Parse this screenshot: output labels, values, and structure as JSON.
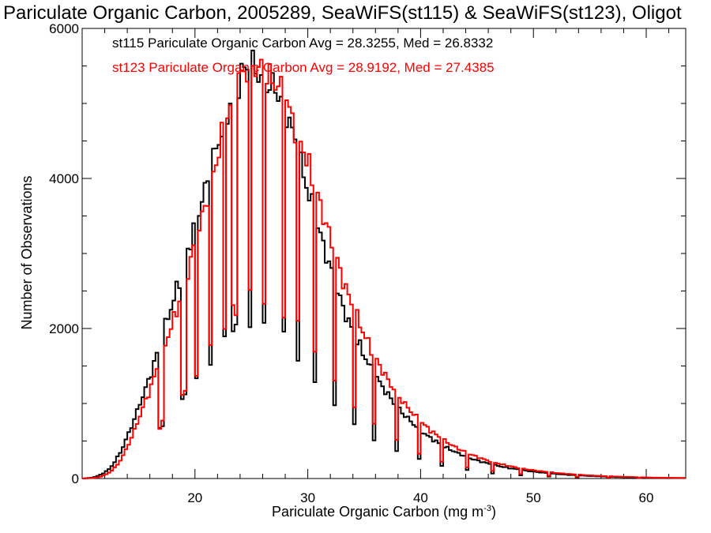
{
  "chart_data": {
    "type": "line",
    "title": "Pariculate Organic Carbon, 2005289, SeaWiFS(st115) & SeaWiFS(st123), Oligot",
    "xlabel": "Pariculate Organic Carbon (mg m",
    "xlabel_sup": "-3",
    "xlabel_close": ")",
    "ylabel": "Number of Observations",
    "xlim": [
      10,
      63.5
    ],
    "ylim": [
      0,
      6000
    ],
    "x_ticks": [
      20,
      30,
      40,
      50,
      60
    ],
    "x_tick_labels": [
      "20",
      "30",
      "40",
      "50",
      "60"
    ],
    "y_ticks": [
      0,
      2000,
      4000,
      6000
    ],
    "y_tick_labels": [
      "0",
      "2000",
      "4000",
      "6000"
    ],
    "grid": false,
    "legend_position": "top-left",
    "bin_width": 0.25,
    "series": [
      {
        "name": "st115",
        "label": "st115 Pariculate Organic Carbon Avg = 28.3255, Med = 26.8332",
        "color": "#000000",
        "x": [
          10.0,
          10.5,
          11.0,
          11.5,
          12.0,
          12.5,
          13.0,
          13.5,
          14.0,
          14.5,
          15.0,
          15.5,
          16.0,
          16.5,
          17.0,
          17.5,
          18.0,
          18.5,
          19.0,
          19.5,
          20.0,
          20.5,
          21.0,
          21.5,
          22.0,
          22.5,
          23.0,
          23.5,
          24.0,
          24.5,
          25.0,
          25.5,
          26.0,
          26.5,
          27.0,
          27.5,
          28.0,
          28.5,
          29.0,
          29.5,
          30.0,
          30.5,
          31.0,
          31.5,
          32.0,
          32.5,
          33.0,
          33.5,
          34.0,
          34.5,
          35.0,
          35.5,
          36.0,
          36.5,
          37.0,
          37.5,
          38.0,
          38.5,
          39.0,
          39.5,
          40.0,
          40.5,
          41.0,
          41.5,
          42.0,
          42.5,
          43.0,
          43.5,
          44.0,
          44.5,
          45.0,
          45.5,
          46.0,
          46.5,
          47.0,
          47.5,
          48.0,
          48.5,
          49.0,
          49.5,
          50.0,
          50.5,
          51.0,
          51.5,
          52.0,
          52.5,
          53.0,
          53.5,
          54.0,
          54.5,
          55.0,
          55.5,
          56.0,
          56.5,
          57.0,
          57.5,
          58.0,
          58.5,
          59.0,
          59.5,
          60.0,
          60.5,
          61.0,
          61.5,
          62.0,
          62.5,
          63.0
        ],
        "y": [
          0,
          5,
          15,
          40,
          80,
          140,
          250,
          380,
          560,
          740,
          950,
          1150,
          1350,
          1600,
          1840,
          2100,
          2330,
          2580,
          2840,
          3100,
          3400,
          3650,
          3900,
          4200,
          4450,
          4700,
          4950,
          5200,
          5380,
          5450,
          5500,
          5420,
          5330,
          5260,
          5220,
          5100,
          4950,
          4700,
          4400,
          4100,
          3850,
          3550,
          3300,
          3050,
          2800,
          2560,
          2330,
          2130,
          1960,
          1800,
          1640,
          1490,
          1370,
          1250,
          1140,
          1040,
          940,
          860,
          780,
          710,
          640,
          580,
          530,
          480,
          435,
          395,
          360,
          325,
          295,
          265,
          240,
          220,
          200,
          180,
          165,
          150,
          135,
          125,
          112,
          100,
          92,
          84,
          76,
          68,
          62,
          56,
          50,
          46,
          42,
          38,
          34,
          31,
          28,
          25,
          22,
          20,
          18,
          16,
          14,
          12,
          11,
          10,
          9,
          8,
          7,
          6,
          6
        ]
      },
      {
        "name": "st123",
        "label": "st123 Pariculate Organic Carbon Avg = 28.9192, Med = 27.4385",
        "color": "#ff0000",
        "x": [
          10.0,
          10.5,
          11.0,
          11.5,
          12.0,
          12.5,
          13.0,
          13.5,
          14.0,
          14.5,
          15.0,
          15.5,
          16.0,
          16.5,
          17.0,
          17.5,
          18.0,
          18.5,
          19.0,
          19.5,
          20.0,
          20.5,
          21.0,
          21.5,
          22.0,
          22.5,
          23.0,
          23.5,
          24.0,
          24.5,
          25.0,
          25.5,
          26.0,
          26.5,
          27.0,
          27.5,
          28.0,
          28.5,
          29.0,
          29.5,
          30.0,
          30.5,
          31.0,
          31.5,
          32.0,
          32.5,
          33.0,
          33.5,
          34.0,
          34.5,
          35.0,
          35.5,
          36.0,
          36.5,
          37.0,
          37.5,
          38.0,
          38.5,
          39.0,
          39.5,
          40.0,
          40.5,
          41.0,
          41.5,
          42.0,
          42.5,
          43.0,
          43.5,
          44.0,
          44.5,
          45.0,
          45.5,
          46.0,
          46.5,
          47.0,
          47.5,
          48.0,
          48.5,
          49.0,
          49.5,
          50.0,
          50.5,
          51.0,
          51.5,
          52.0,
          52.5,
          53.0,
          53.5,
          54.0,
          54.5,
          55.0,
          55.5,
          56.0,
          56.5,
          57.0,
          57.5,
          58.0,
          58.5,
          59.0,
          59.5,
          60.0,
          60.5,
          61.0,
          61.5,
          62.0,
          62.5,
          63.0
        ],
        "y": [
          0,
          3,
          8,
          20,
          45,
          90,
          160,
          270,
          420,
          590,
          790,
          990,
          1180,
          1400,
          1620,
          1850,
          2070,
          2300,
          2560,
          2830,
          3120,
          3400,
          3700,
          4000,
          4300,
          4600,
          4900,
          5150,
          5350,
          5460,
          5520,
          5480,
          5420,
          5350,
          5300,
          5200,
          5050,
          4850,
          4650,
          4450,
          4200,
          3950,
          3700,
          3450,
          3200,
          2950,
          2700,
          2480,
          2280,
          2100,
          1920,
          1760,
          1610,
          1470,
          1340,
          1220,
          1110,
          1010,
          920,
          835,
          760,
          690,
          625,
          570,
          515,
          470,
          425,
          385,
          350,
          318,
          288,
          262,
          238,
          216,
          196,
          178,
          162,
          147,
          133,
          121,
          110,
          100,
          91,
          83,
          75,
          68,
          62,
          56,
          51,
          46,
          42,
          38,
          34,
          31,
          28,
          25,
          23,
          21,
          19,
          17,
          15,
          13,
          12,
          11,
          10,
          9,
          8
        ]
      }
    ],
    "comb_dips": {
      "note": "sharp downward spikes visible in both series",
      "x": [
        17.0,
        19.0,
        20.2,
        21.4,
        22.6,
        23.5,
        24.8,
        26.2,
        27.8,
        29.2,
        30.7,
        32.3,
        34.1,
        35.9,
        37.8,
        39.8,
        41.9,
        44.1,
        46.4,
        48.8,
        51.3,
        53.9,
        56.6,
        59.4
      ]
    }
  }
}
